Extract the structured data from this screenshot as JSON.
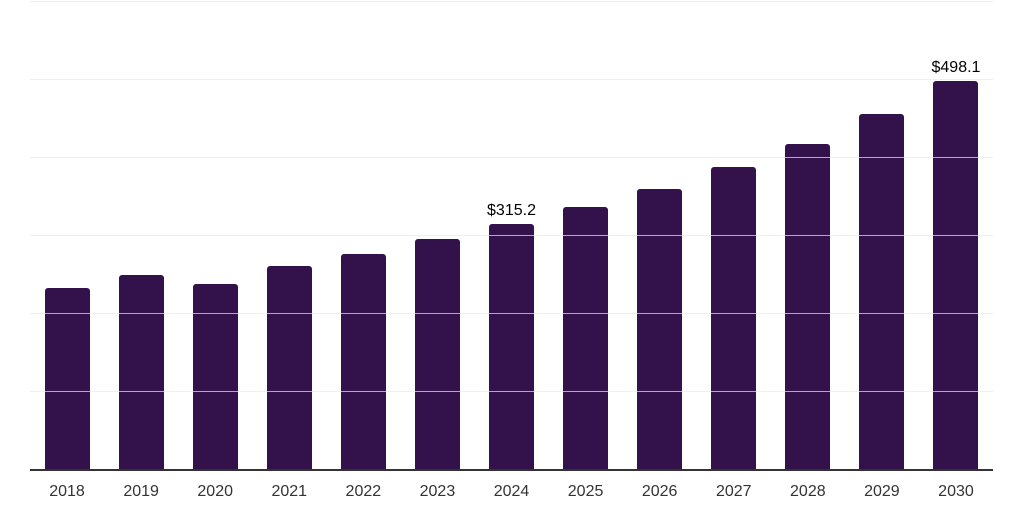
{
  "chart": {
    "background_color": "#ffffff",
    "bar_color": "#33124c",
    "grid_color_rgba": "rgba(233,233,238,0.7)",
    "axis_color": "#333333",
    "tick_color": "#333333",
    "data_label_color": "#000000"
  },
  "chart_data": {
    "type": "bar",
    "title": "",
    "xlabel": "",
    "ylabel": "",
    "categories": [
      "2018",
      "2019",
      "2020",
      "2021",
      "2022",
      "2023",
      "2024",
      "2025",
      "2026",
      "2027",
      "2028",
      "2029",
      "2030"
    ],
    "values": [
      233.0,
      250.5,
      238.5,
      261.5,
      277.0,
      296.0,
      315.2,
      337.0,
      360.0,
      388.0,
      418.0,
      456.0,
      498.1
    ],
    "data_labels": {
      "2024": "$315.2",
      "2030": "$498.1"
    },
    "ylim": [
      0,
      600
    ],
    "grid_step": 100,
    "grid": true,
    "y_tick_labels_visible": false,
    "legend": false,
    "legend_position": "none"
  }
}
